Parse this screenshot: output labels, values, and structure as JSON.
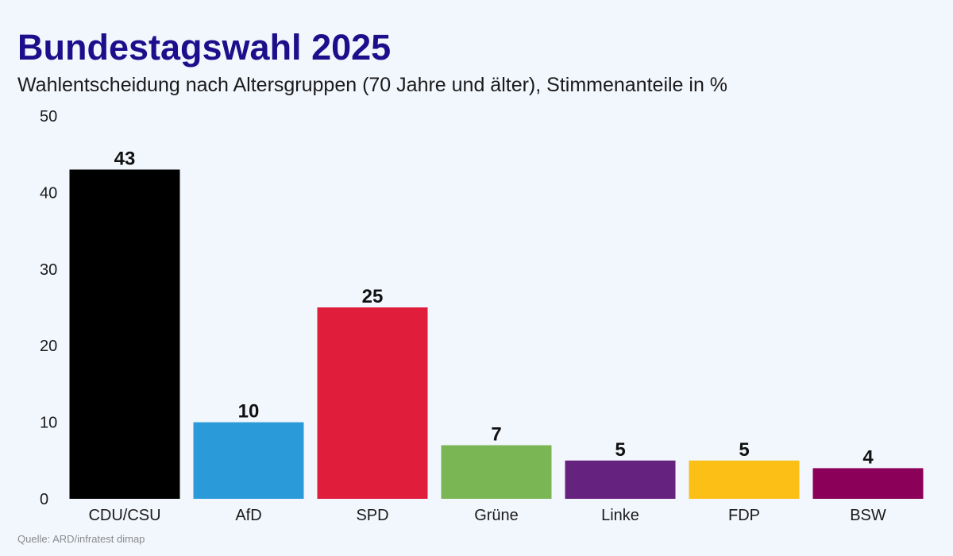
{
  "header": {
    "title": "Bundestagswahl 2025",
    "subtitle": "Wahlentscheidung nach Altersgruppen (70 Jahre und älter), Stimmenanteile in %"
  },
  "footer": {
    "source": "Quelle: ARD/infratest dimap"
  },
  "chart_data": {
    "type": "bar",
    "title": "Bundestagswahl 2025",
    "subtitle": "Wahlentscheidung nach Altersgruppen (70 Jahre und älter), Stimmenanteile in %",
    "categories": [
      "CDU/CSU",
      "AfD",
      "SPD",
      "Grüne",
      "Linke",
      "FDP",
      "BSW"
    ],
    "values": [
      43,
      10,
      25,
      7,
      5,
      5,
      4
    ],
    "data_labels": [
      "43",
      "10",
      "25",
      "7",
      "5",
      "5",
      "4"
    ],
    "colors": [
      "#000000",
      "#2a9bd8",
      "#e01e3c",
      "#7ab754",
      "#66227f",
      "#fbbf16",
      "#8b0058"
    ],
    "ylim": [
      0,
      50
    ],
    "yticks": [
      0,
      10,
      20,
      30,
      40,
      50
    ],
    "ytick_labels": [
      "0",
      "10",
      "20",
      "30",
      "40",
      "50"
    ],
    "xlabel": "",
    "ylabel": "",
    "grid": false,
    "legend": "none"
  }
}
